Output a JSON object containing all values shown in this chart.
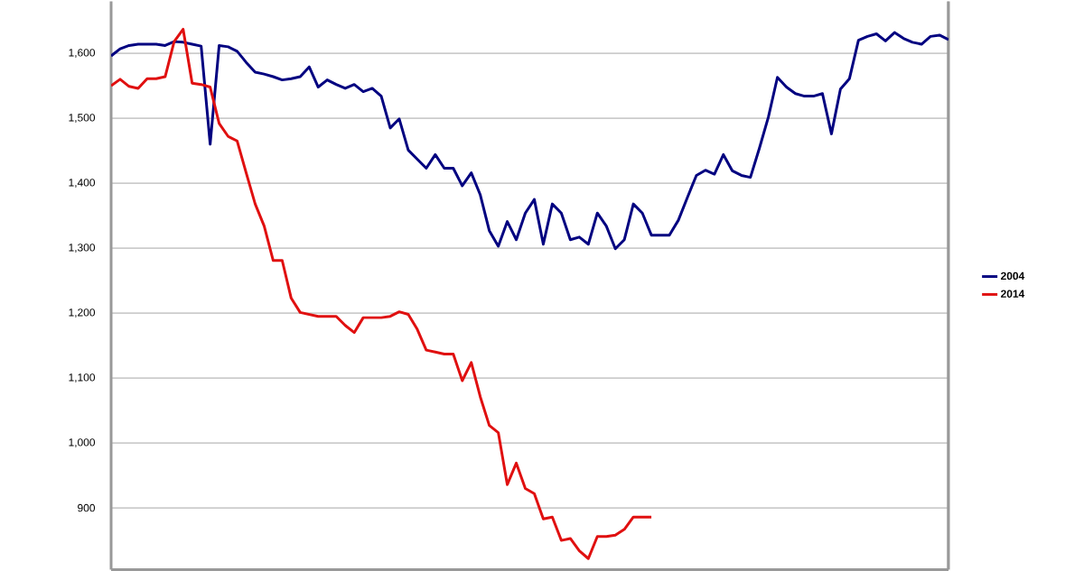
{
  "chart_data": {
    "type": "line",
    "categories": [
      null,
      null,
      null,
      null,
      null,
      null,
      null,
      null,
      null,
      null,
      null,
      null,
      null,
      null,
      null,
      null,
      null,
      null,
      null,
      null,
      null,
      null,
      null,
      null,
      null,
      null,
      null,
      null,
      null,
      null,
      null,
      null,
      null,
      null,
      null,
      null,
      null,
      null,
      null,
      null,
      null,
      null,
      null,
      null,
      null,
      null,
      null,
      null,
      null,
      null,
      null,
      null,
      null,
      null,
      null,
      null,
      null,
      null,
      null,
      null,
      null,
      null,
      null,
      null,
      null,
      null,
      null,
      null,
      null,
      null,
      null,
      null,
      null,
      null,
      null,
      null,
      null,
      null,
      null,
      null,
      null,
      null,
      null,
      null,
      null,
      null,
      null,
      null,
      null,
      null,
      null,
      null,
      null,
      null
    ],
    "series": [
      {
        "name": "2004",
        "color": "#000080",
        "values": [
          1596,
          1607,
          1612,
          1614,
          1614,
          1614,
          1612,
          1618,
          1617,
          1614,
          1611,
          1460,
          1612,
          1610,
          1603,
          1586,
          1571,
          1568,
          1564,
          1559,
          1561,
          1564,
          1579,
          1548,
          1559,
          1552,
          1546,
          1552,
          1541,
          1546,
          1534,
          1485,
          1499,
          1451,
          1437,
          1423,
          1444,
          1423,
          1423,
          1396,
          1416,
          1382,
          1327,
          1303,
          1341,
          1313,
          1354,
          1375,
          1306,
          1368,
          1354,
          1313,
          1317,
          1306,
          1354,
          1334,
          1299,
          1313,
          1368,
          1354,
          1320,
          1320,
          1320,
          1343,
          1378,
          1412,
          1420,
          1414,
          1444,
          1419,
          1412,
          1409,
          1454,
          1502,
          1563,
          1548,
          1538,
          1534,
          1534,
          1538,
          1476,
          1545,
          1561,
          1620,
          1626,
          1630,
          1619,
          1632,
          1623,
          1617,
          1614,
          1626,
          1628,
          1621
        ]
      },
      {
        "name": "2014",
        "color": "#e01010",
        "values": [
          1550,
          1560,
          1549,
          1546,
          1561,
          1561,
          1564,
          1618,
          1637,
          1554,
          1552,
          1548,
          1492,
          1472,
          1465,
          1416,
          1368,
          1334,
          1281,
          1281,
          1223,
          1201,
          1198,
          1195,
          1195,
          1195,
          1181,
          1170,
          1193,
          1193,
          1193,
          1195,
          1202,
          1198,
          1175,
          1143,
          1140,
          1137,
          1137,
          1096,
          1124,
          1071,
          1027,
          1016,
          936,
          969,
          930,
          922,
          883,
          886,
          850,
          853,
          834,
          822,
          856,
          856,
          858,
          867,
          886,
          886,
          886,
          null,
          null,
          null,
          null,
          null,
          null,
          null,
          null,
          null,
          null,
          null,
          null,
          null,
          null,
          null,
          null,
          null,
          null,
          null,
          null,
          null,
          null,
          null,
          null,
          null,
          null,
          null,
          null,
          null,
          null,
          null,
          null,
          null
        ]
      }
    ],
    "ylim": [
      805,
      1680
    ],
    "yticks": [
      {
        "value": 900,
        "label": "900"
      },
      {
        "value": 1000,
        "label": "1,000"
      },
      {
        "value": 1100,
        "label": "1,100"
      },
      {
        "value": 1200,
        "label": "1,200"
      },
      {
        "value": 1300,
        "label": "1,300"
      },
      {
        "value": 1400,
        "label": "1,400"
      },
      {
        "value": 1500,
        "label": "1,500"
      },
      {
        "value": 1600,
        "label": "1,600"
      }
    ],
    "grid": "y",
    "legend": "right",
    "tick_labels": "y",
    "marker": "none",
    "line_style": "solid"
  }
}
